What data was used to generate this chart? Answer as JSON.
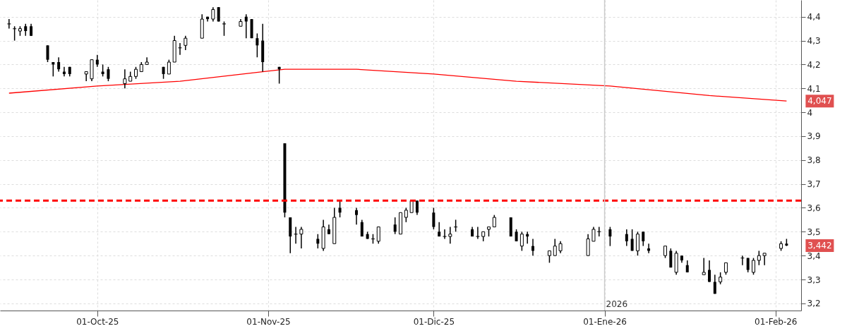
{
  "chart_data": {
    "type": "candlestick",
    "x": [
      "2025-09-15",
      "2025-09-16",
      "2025-09-17",
      "2025-09-18",
      "2025-09-19",
      "2025-09-22",
      "2025-09-23",
      "2025-09-24",
      "2025-09-25",
      "2025-09-26",
      "2025-09-29",
      "2025-09-30",
      "2025-10-01",
      "2025-10-02",
      "2025-10-03",
      "2025-10-06",
      "2025-10-07",
      "2025-10-08",
      "2025-10-09",
      "2025-10-10",
      "2025-10-13",
      "2025-10-14",
      "2025-10-15",
      "2025-10-16",
      "2025-10-17",
      "2025-10-20",
      "2025-10-21",
      "2025-10-22",
      "2025-10-23",
      "2025-10-24",
      "2025-10-27",
      "2025-10-28",
      "2025-10-29",
      "2025-10-30",
      "2025-10-31",
      "2025-11-03",
      "2025-11-04",
      "2025-11-05",
      "2025-11-06",
      "2025-11-07",
      "2025-11-10",
      "2025-11-11",
      "2025-11-12",
      "2025-11-13",
      "2025-11-14",
      "2025-11-17",
      "2025-11-18",
      "2025-11-19",
      "2025-11-20",
      "2025-11-21",
      "2025-11-24",
      "2025-11-25",
      "2025-11-26",
      "2025-11-27",
      "2025-11-28",
      "2025-12-01",
      "2025-12-02",
      "2025-12-03",
      "2025-12-04",
      "2025-12-05",
      "2025-12-08",
      "2025-12-09",
      "2025-12-10",
      "2025-12-11",
      "2025-12-12",
      "2025-12-15",
      "2025-12-16",
      "2025-12-17",
      "2025-12-18",
      "2025-12-19",
      "2025-12-22",
      "2025-12-23",
      "2025-12-24",
      "2025-12-29",
      "2025-12-30",
      "2025-12-31",
      "2026-01-02",
      "2026-01-05",
      "2026-01-06",
      "2026-01-07",
      "2026-01-08",
      "2026-01-09",
      "2026-01-12",
      "2026-01-13",
      "2026-01-14",
      "2026-01-15",
      "2026-01-16",
      "2026-01-19",
      "2026-01-20",
      "2026-01-21",
      "2026-01-22",
      "2026-01-23",
      "2026-01-26",
      "2026-01-27",
      "2026-01-28",
      "2026-01-29",
      "2026-01-30",
      "2026-02-02",
      "2026-02-03"
    ],
    "ohlc": [
      [
        4.37,
        4.39,
        4.35,
        4.37
      ],
      [
        4.35,
        4.36,
        4.3,
        4.35
      ],
      [
        4.34,
        4.36,
        4.32,
        4.35
      ],
      [
        4.36,
        4.37,
        4.32,
        4.34
      ],
      [
        4.36,
        4.37,
        4.32,
        4.32
      ],
      [
        4.28,
        4.28,
        4.21,
        4.22
      ],
      [
        4.21,
        4.21,
        4.15,
        4.2
      ],
      [
        4.21,
        4.23,
        4.17,
        4.18
      ],
      [
        4.17,
        4.19,
        4.15,
        4.16
      ],
      [
        4.19,
        4.19,
        4.15,
        4.16
      ],
      [
        4.16,
        4.17,
        4.13,
        4.17
      ],
      [
        4.14,
        4.22,
        4.13,
        4.22
      ],
      [
        4.22,
        4.24,
        4.19,
        4.2
      ],
      [
        4.17,
        4.2,
        4.15,
        4.16
      ],
      [
        4.18,
        4.19,
        4.13,
        4.14
      ],
      [
        4.12,
        4.18,
        4.1,
        4.14
      ],
      [
        4.13,
        4.17,
        4.13,
        4.15
      ],
      [
        4.15,
        4.19,
        4.14,
        4.18
      ],
      [
        4.17,
        4.21,
        4.17,
        4.2
      ],
      [
        4.2,
        4.23,
        4.2,
        4.21
      ],
      [
        4.19,
        4.19,
        4.14,
        4.16
      ],
      [
        4.16,
        4.22,
        4.16,
        4.21
      ],
      [
        4.21,
        4.32,
        4.21,
        4.3
      ],
      [
        4.27,
        4.29,
        4.24,
        4.27
      ],
      [
        4.28,
        4.32,
        4.26,
        4.31
      ],
      [
        4.31,
        4.41,
        4.31,
        4.39
      ],
      [
        4.4,
        4.4,
        4.38,
        4.39
      ],
      [
        4.39,
        4.44,
        4.38,
        4.43
      ],
      [
        4.44,
        4.44,
        4.38,
        4.38
      ],
      [
        4.37,
        4.38,
        4.32,
        4.37
      ],
      [
        4.36,
        4.39,
        4.36,
        4.38
      ],
      [
        4.4,
        4.41,
        4.31,
        4.38
      ],
      [
        4.39,
        4.39,
        4.31,
        4.31
      ],
      [
        4.31,
        4.33,
        4.23,
        4.28
      ],
      [
        4.3,
        4.37,
        4.17,
        4.21
      ],
      [
        4.19,
        4.19,
        4.12,
        4.18
      ],
      [
        3.87,
        3.87,
        3.56,
        3.58
      ],
      [
        3.56,
        3.56,
        3.41,
        3.48
      ],
      [
        3.49,
        3.52,
        3.45,
        3.49
      ],
      [
        3.49,
        3.52,
        3.43,
        3.51
      ],
      [
        3.47,
        3.49,
        3.43,
        3.45
      ],
      [
        3.43,
        3.55,
        3.42,
        3.52
      ],
      [
        3.51,
        3.53,
        3.49,
        3.49
      ],
      [
        3.45,
        3.6,
        3.45,
        3.56
      ],
      [
        3.6,
        3.63,
        3.56,
        3.58
      ],
      [
        3.59,
        3.6,
        3.53,
        3.57
      ],
      [
        3.54,
        3.55,
        3.48,
        3.48
      ],
      [
        3.49,
        3.5,
        3.47,
        3.47
      ],
      [
        3.47,
        3.49,
        3.45,
        3.47
      ],
      [
        3.46,
        3.52,
        3.45,
        3.52
      ],
      [
        3.53,
        3.56,
        3.49,
        3.5
      ],
      [
        3.49,
        3.58,
        3.49,
        3.58
      ],
      [
        3.56,
        3.6,
        3.54,
        3.59
      ],
      [
        3.58,
        3.63,
        3.58,
        3.63
      ],
      [
        3.63,
        3.63,
        3.57,
        3.58
      ],
      [
        3.58,
        3.6,
        3.51,
        3.52
      ],
      [
        3.5,
        3.54,
        3.48,
        3.48
      ],
      [
        3.48,
        3.51,
        3.47,
        3.48
      ],
      [
        3.48,
        3.52,
        3.45,
        3.49
      ],
      [
        3.52,
        3.55,
        3.5,
        3.52
      ],
      [
        3.51,
        3.52,
        3.48,
        3.48
      ],
      [
        3.48,
        3.52,
        3.47,
        3.48
      ],
      [
        3.48,
        3.5,
        3.46,
        3.5
      ],
      [
        3.51,
        3.52,
        3.48,
        3.52
      ],
      [
        3.52,
        3.57,
        3.52,
        3.56
      ],
      [
        3.56,
        3.56,
        3.48,
        3.48
      ],
      [
        3.5,
        3.51,
        3.46,
        3.46
      ],
      [
        3.44,
        3.5,
        3.42,
        3.49
      ],
      [
        3.49,
        3.5,
        3.45,
        3.48
      ],
      [
        3.44,
        3.47,
        3.4,
        3.42
      ],
      [
        3.4,
        3.42,
        3.37,
        3.42
      ],
      [
        3.4,
        3.47,
        3.4,
        3.44
      ],
      [
        3.42,
        3.46,
        3.41,
        3.45
      ],
      [
        3.4,
        3.49,
        3.4,
        3.47
      ],
      [
        3.46,
        3.52,
        3.46,
        3.51
      ],
      [
        3.5,
        3.52,
        3.48,
        3.5
      ],
      [
        3.51,
        3.52,
        3.44,
        3.48
      ],
      [
        3.49,
        3.51,
        3.44,
        3.46
      ],
      [
        3.47,
        3.51,
        3.42,
        3.42
      ],
      [
        3.42,
        3.5,
        3.4,
        3.49
      ],
      [
        3.5,
        3.5,
        3.44,
        3.46
      ],
      [
        3.43,
        3.45,
        3.41,
        3.42
      ],
      [
        3.4,
        3.44,
        3.39,
        3.44
      ],
      [
        3.42,
        3.43,
        3.35,
        3.35
      ],
      [
        3.33,
        3.42,
        3.32,
        3.41
      ],
      [
        3.4,
        3.4,
        3.37,
        3.38
      ],
      [
        3.36,
        3.38,
        3.33,
        3.33
      ],
      [
        3.32,
        3.39,
        3.32,
        3.33
      ],
      [
        3.34,
        3.38,
        3.29,
        3.29
      ],
      [
        3.29,
        3.32,
        3.24,
        3.24
      ],
      [
        3.29,
        3.33,
        3.28,
        3.31
      ],
      [
        3.33,
        3.37,
        3.32,
        3.37
      ],
      [
        3.39,
        3.4,
        3.36,
        3.39
      ],
      [
        3.39,
        3.39,
        3.33,
        3.34
      ],
      [
        3.33,
        3.39,
        3.32,
        3.38
      ],
      [
        3.38,
        3.42,
        3.36,
        3.4
      ],
      [
        3.4,
        3.41,
        3.36,
        3.41
      ],
      [
        3.43,
        3.46,
        3.42,
        3.45
      ],
      [
        3.45,
        3.47,
        3.44,
        3.442
      ]
    ],
    "series": [
      {
        "type": "line",
        "color": "#ff0000",
        "x": [
          "2025-09-15",
          "2025-10-01",
          "2025-10-16",
          "2025-10-31",
          "2025-11-04",
          "2025-11-17",
          "2025-12-01",
          "2025-12-16",
          "2026-01-02",
          "2026-01-20",
          "2026-02-03"
        ],
        "values": [
          4.08,
          4.11,
          4.13,
          4.17,
          4.18,
          4.18,
          4.16,
          4.13,
          4.11,
          4.07,
          4.047
        ]
      }
    ],
    "xlim": [
      "2025-09-14",
      "2026-02-05"
    ],
    "xticks": [
      {
        "value": "2025-10-01",
        "label": "01-Oct-25"
      },
      {
        "value": "2025-11-01",
        "label": "01-Nov-25"
      },
      {
        "value": "2025-12-01",
        "label": "01-Dic-25"
      },
      {
        "value": "2026-01-01",
        "label": "01-Ene-26"
      },
      {
        "value": "2026-02-01",
        "label": "01-Feb-26"
      }
    ],
    "ylim": [
      3.17,
      4.47
    ],
    "yticks": [
      {
        "value": 3.2,
        "label": "3,2"
      },
      {
        "value": 3.3,
        "label": "3,3"
      },
      {
        "value": 3.4,
        "label": "3,4"
      },
      {
        "value": 3.5,
        "label": "3,5"
      },
      {
        "value": 3.6,
        "label": "3,6"
      },
      {
        "value": 3.7,
        "label": "3,7"
      },
      {
        "value": 3.8,
        "label": "3,8"
      },
      {
        "value": 3.9,
        "label": "3,9"
      },
      {
        "value": 4.0,
        "label": "4"
      },
      {
        "value": 4.1,
        "label": "4,1"
      },
      {
        "value": 4.2,
        "label": "4,2"
      },
      {
        "value": 4.3,
        "label": "4,3"
      },
      {
        "value": 4.4,
        "label": "4,4"
      }
    ],
    "grid": true,
    "ref_lines": [
      {
        "axis": "y",
        "value": 3.63,
        "color": "#ff0000",
        "line_style": "dashed"
      },
      {
        "axis": "x",
        "value": "2026-01-01",
        "label": "2026",
        "color": "#cccccc",
        "line_style": "solid"
      }
    ],
    "annotations": [
      {
        "text": "4,047",
        "x": "2026-02-03",
        "y": 4.047
      },
      {
        "text": "3,442",
        "x": "2026-02-03",
        "y": 3.442
      }
    ]
  }
}
